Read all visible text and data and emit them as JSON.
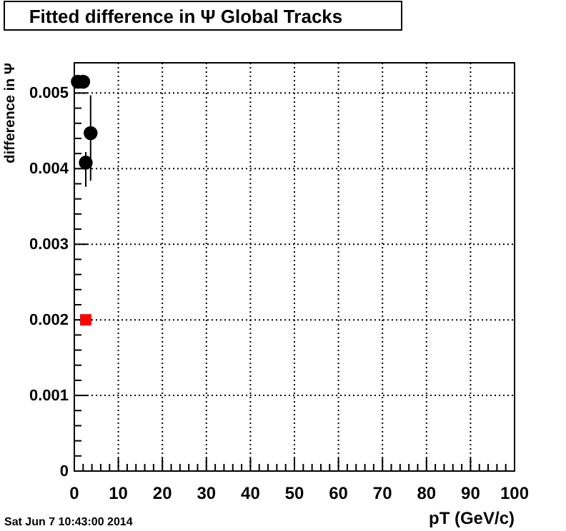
{
  "chart_data": {
    "type": "scatter",
    "title": "Fitted difference in  Ψ  Global Tracks",
    "xlabel": "pT (GeV/c)",
    "ylabel": "difference in Ψ",
    "annotations": [
      "Sat Jun  7 10:43:00 2014"
    ],
    "series": [
      {
        "color": "#000000",
        "marker": "circle",
        "x": [
          0.8,
          2.0,
          2.6,
          3.7
        ],
        "values": [
          0.00515,
          0.00515,
          0.00408,
          0.00447
        ],
        "errors": [
          5e-05,
          5e-05,
          [
            0.00376,
            0.00422
          ],
          [
            0.00384,
            0.00497
          ]
        ]
      },
      {
        "color": "#ff0000",
        "marker": "square",
        "x": [
          2.6
        ],
        "values": [
          0.002
        ]
      }
    ],
    "xlim": [
      0,
      100
    ],
    "xticks": [
      0,
      10,
      20,
      30,
      40,
      50,
      60,
      70,
      80,
      90,
      100
    ],
    "ylim": [
      0,
      0.0054
    ],
    "yticks": [
      0,
      0.001,
      0.002,
      0.003,
      0.004,
      0.005
    ],
    "grid": true
  }
}
